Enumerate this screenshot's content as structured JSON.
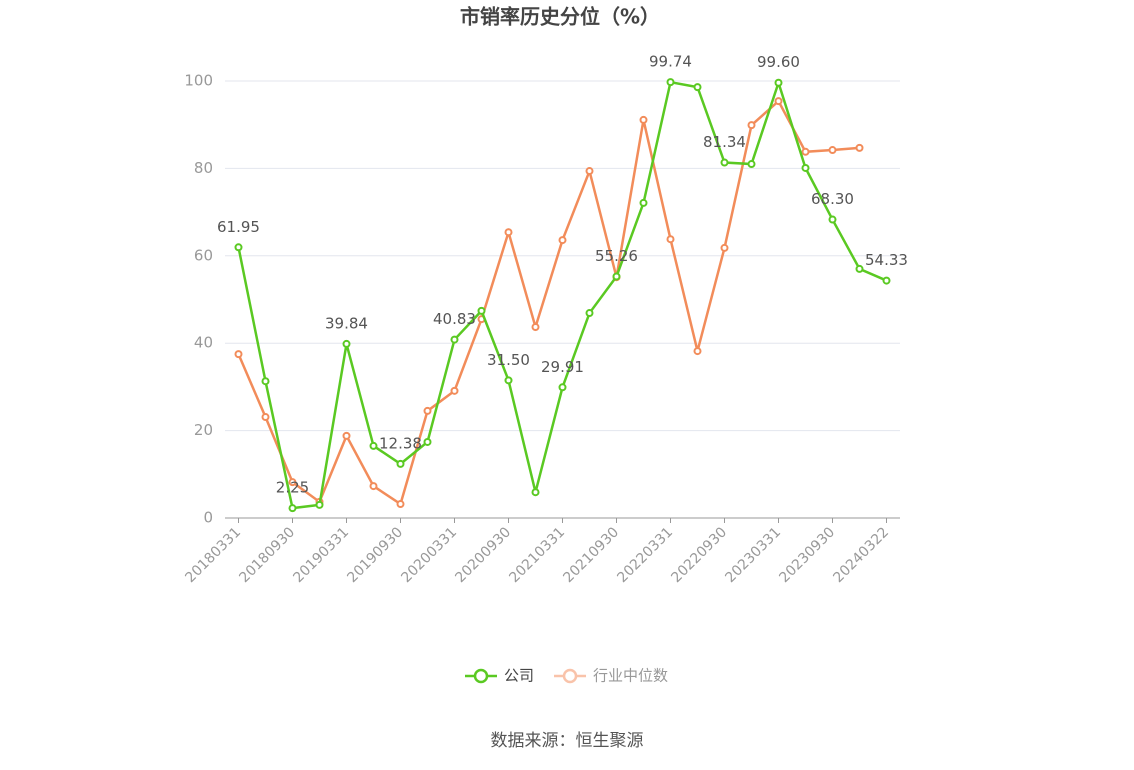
{
  "chart_data": {
    "type": "line",
    "title": "市销率历史分位（%）",
    "categories": [
      "20180331",
      null,
      "20180930",
      null,
      "20190331",
      null,
      "20190930",
      null,
      "20200331",
      null,
      "20200930",
      null,
      "20210331",
      null,
      "20210930",
      null,
      "20220331",
      null,
      "20220930",
      null,
      "20230331",
      null,
      "20230930",
      null,
      "20240322"
    ],
    "series": [
      {
        "name": "公司",
        "color": "#5ac922",
        "values": [
          61.95,
          31.3,
          2.25,
          3.0,
          39.84,
          16.5,
          12.38,
          17.4,
          40.83,
          47.4,
          31.5,
          5.9,
          29.91,
          46.9,
          55.26,
          72.1,
          99.74,
          98.6,
          81.34,
          81.0,
          99.6,
          80.1,
          68.3,
          57.0,
          54.33
        ],
        "value_labels": [
          "61.95",
          null,
          "2.25",
          null,
          "39.84",
          null,
          "12.38",
          null,
          "40.83",
          null,
          "31.50",
          null,
          "29.91",
          null,
          "55.26",
          null,
          "99.74",
          null,
          "81.34",
          null,
          "99.60",
          null,
          "68.30",
          null,
          "54.33"
        ]
      },
      {
        "name": "行业中位数",
        "color": "#f28c5a",
        "values": [
          37.5,
          23.1,
          8.2,
          3.7,
          18.8,
          7.3,
          3.2,
          24.5,
          29.1,
          45.5,
          65.4,
          43.7,
          63.6,
          79.4,
          55.1,
          91.1,
          63.8,
          38.2,
          61.8,
          89.9,
          95.4,
          83.8,
          84.2,
          84.7,
          null
        ]
      }
    ],
    "ylim": [
      0,
      100
    ],
    "yticks": [
      0,
      20,
      40,
      60,
      80,
      100
    ],
    "grid": true,
    "source": "数据来源：恒生聚源"
  }
}
